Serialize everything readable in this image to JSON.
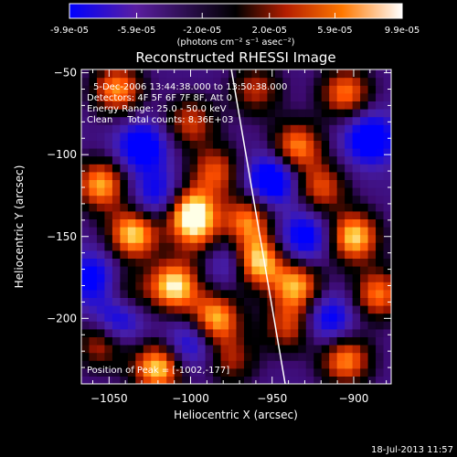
{
  "colorbar": {
    "tick_labels": [
      "-9.9e-05",
      "-5.9e-05",
      "-2.0e-05",
      "2.0e-05",
      "5.9e-05",
      "9.9e-05"
    ],
    "tick_values": [
      -9.9e-05,
      -5.9e-05,
      -2e-05,
      2e-05,
      5.9e-05,
      9.9e-05
    ],
    "range": [
      -9.9e-05,
      9.9e-05
    ],
    "unit_label": "(photons cm⁻² s⁻¹ asec⁻²)",
    "colormap": [
      "#0000ff",
      "#5a1ea0",
      "#000000",
      "#b41e00",
      "#ff7800",
      "#ffffff"
    ]
  },
  "chart_data": {
    "type": "heatmap",
    "title": "Reconstructed RHESSI Image",
    "xlabel": "Heliocentric X (arcsec)",
    "ylabel": "Heliocentric Y (arcsec)",
    "xlim": [
      -1067,
      -877
    ],
    "ylim": [
      -240,
      -48
    ],
    "x_ticks": [
      -1050,
      -1000,
      -950,
      -900
    ],
    "y_ticks": [
      -200,
      -150,
      -100,
      -50
    ],
    "x_tick_labels": [
      "−1050",
      "−1000",
      "−950",
      "−900"
    ],
    "y_tick_labels": [
      "−200",
      "−150",
      "−100",
      "−50"
    ],
    "annotations": [
      "5-Dec-2006 13:44:38.000 to 13:50:38.000",
      "Detectors: 4F 5F 6F 7F 8F, Att 0",
      "Energy Range: 25.0 - 50.0 keV",
      "Clean     Total counts: 8.36E+03"
    ],
    "peak_label": "Position of Peak = [-1002,-177]",
    "peak": [
      -1002,
      -177
    ],
    "limb_line": [
      [
        -975,
        -48
      ],
      [
        -942,
        -240
      ]
    ],
    "sources": [
      {
        "x": -1045,
        "y": -60,
        "v": 0.75
      },
      {
        "x": -1000,
        "y": -80,
        "v": 0.55
      },
      {
        "x": -985,
        "y": -110,
        "v": 0.6
      },
      {
        "x": -1055,
        "y": -118,
        "v": 0.8
      },
      {
        "x": -1035,
        "y": -148,
        "v": 0.9
      },
      {
        "x": -1000,
        "y": -135,
        "v": 1.0
      },
      {
        "x": -995,
        "y": -150,
        "v": 0.4
      },
      {
        "x": -965,
        "y": -140,
        "v": 0.7
      },
      {
        "x": -960,
        "y": -165,
        "v": 1.0
      },
      {
        "x": -935,
        "y": -95,
        "v": 0.75
      },
      {
        "x": -905,
        "y": -62,
        "v": 0.7
      },
      {
        "x": -920,
        "y": -120,
        "v": 0.6
      },
      {
        "x": -900,
        "y": -150,
        "v": 0.9
      },
      {
        "x": -935,
        "y": -180,
        "v": 0.8
      },
      {
        "x": -1010,
        "y": -180,
        "v": 0.95
      },
      {
        "x": -985,
        "y": -200,
        "v": 0.85
      },
      {
        "x": -1055,
        "y": -215,
        "v": 0.55
      },
      {
        "x": -1020,
        "y": -230,
        "v": 0.9
      },
      {
        "x": -975,
        "y": -225,
        "v": 0.45
      },
      {
        "x": -940,
        "y": -205,
        "v": 0.55
      },
      {
        "x": -905,
        "y": -225,
        "v": 0.75
      },
      {
        "x": -885,
        "y": -185,
        "v": 0.7
      },
      {
        "x": -1040,
        "y": -185,
        "v": 0.4
      },
      {
        "x": -960,
        "y": -60,
        "v": 0.5
      }
    ],
    "sinks": [
      {
        "x": -1030,
        "y": -95,
        "v": -0.65
      },
      {
        "x": -950,
        "y": -115,
        "v": -0.75
      },
      {
        "x": -1060,
        "y": -175,
        "v": -0.55
      },
      {
        "x": -1000,
        "y": -215,
        "v": -0.5
      },
      {
        "x": -930,
        "y": -150,
        "v": -0.6
      },
      {
        "x": -890,
        "y": -90,
        "v": -0.7
      },
      {
        "x": -1045,
        "y": -200,
        "v": -0.6
      },
      {
        "x": -975,
        "y": -165,
        "v": -0.45
      },
      {
        "x": -1020,
        "y": -125,
        "v": -0.5
      },
      {
        "x": -915,
        "y": -200,
        "v": -0.55
      }
    ]
  },
  "footer": {
    "timestamp": "18-Jul-2013 11:57"
  }
}
